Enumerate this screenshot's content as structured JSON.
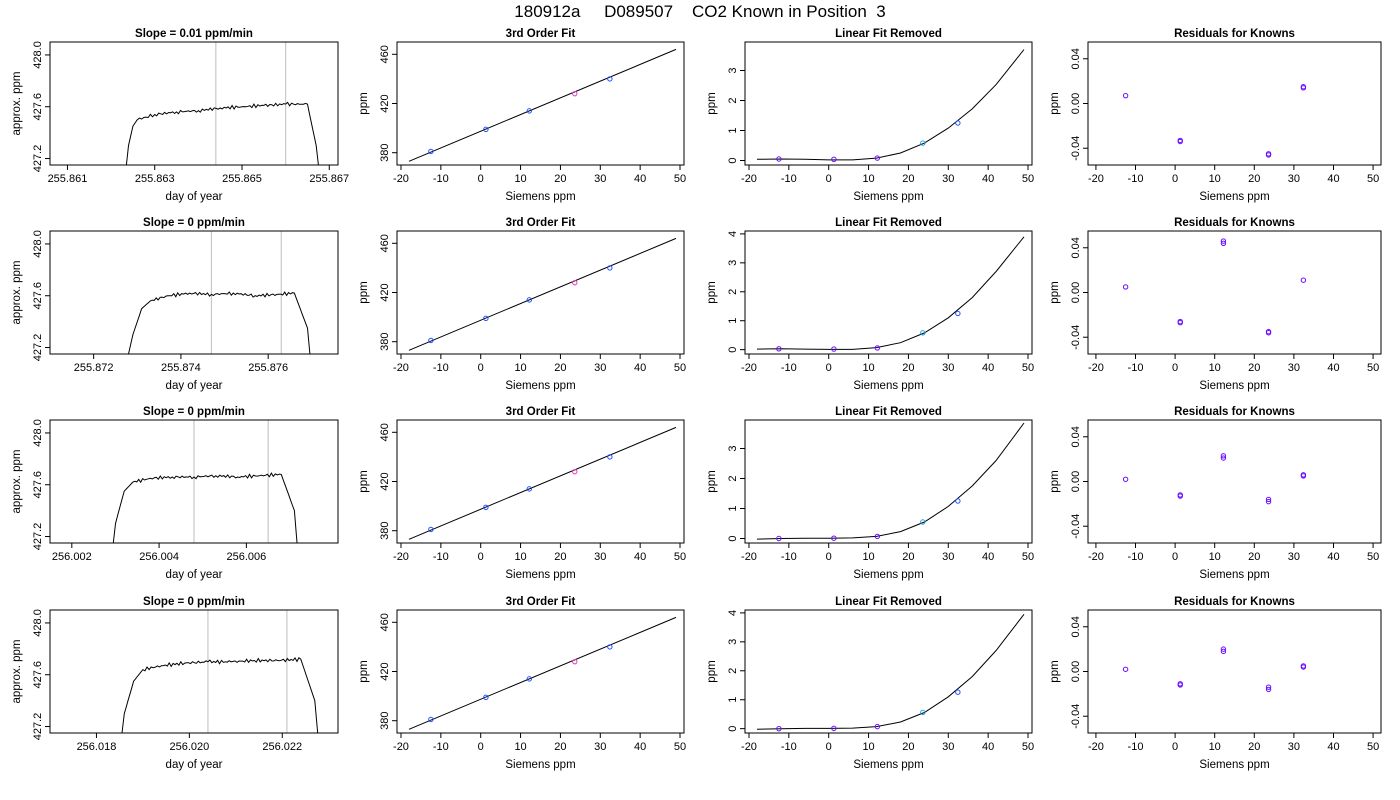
{
  "figure_title": "180912a     D089507    CO2 Known in Position  3",
  "colors": {
    "trace": "#000000",
    "vline": "#c8c8c8",
    "axis": "#000000",
    "point": "#6a0dff",
    "point_blue": "#1e50ff",
    "point_cyan": "#1ca0e8",
    "point_magenta": "#e040c0"
  },
  "chart_data": [
    {
      "type": "line",
      "panel": "trace",
      "row": 0,
      "title": "Slope =  0.01  ppm/min",
      "xlabel": "day of year",
      "ylabel": "approx. ppm",
      "xlim": [
        255.8606,
        255.8672
      ],
      "ylim": [
        427.15,
        428.1
      ],
      "xticks": [
        255.861,
        255.863,
        255.865,
        255.867
      ],
      "xticklabels": [
        "255.861",
        "255.863",
        "255.865",
        "255.867"
      ],
      "yticks": [
        427.2,
        427.6,
        428.0
      ],
      "yticklabels": [
        "427.2",
        "427.6",
        "428.0"
      ],
      "vlines": [
        255.8644,
        255.866
      ],
      "x": [
        255.8623,
        255.8624,
        255.8625,
        255.8626,
        255.8628,
        255.863,
        255.8635,
        255.864,
        255.8645,
        255.865,
        255.8655,
        255.866,
        255.8665,
        255.8667,
        255.8668
      ],
      "y": [
        427.0,
        427.3,
        427.45,
        427.5,
        427.52,
        427.54,
        427.56,
        427.57,
        427.59,
        427.6,
        427.61,
        427.62,
        427.62,
        427.3,
        427.0
      ]
    },
    {
      "type": "line",
      "panel": "fit",
      "row": 0,
      "title": "3rd Order Fit",
      "xlabel": "Siemens ppm",
      "ylabel": "ppm",
      "xlim": [
        -21,
        51
      ],
      "ylim": [
        370,
        470
      ],
      "xticks": [
        -20,
        -10,
        0,
        10,
        20,
        30,
        40,
        50
      ],
      "yticks": [
        380,
        420,
        460
      ],
      "line_x": [
        -18,
        49
      ],
      "line_y": [
        373,
        464
      ],
      "points": [
        [
          -12.5,
          381
        ],
        [
          1.3,
          399
        ],
        [
          12.2,
          414
        ],
        [
          23.6,
          428
        ],
        [
          32.4,
          440
        ]
      ]
    },
    {
      "type": "line",
      "panel": "linrem",
      "row": 0,
      "title": "Linear Fit Removed",
      "xlabel": "Siemens ppm",
      "ylabel": "ppm",
      "xlim": [
        -21,
        51
      ],
      "ylim": [
        -0.15,
        3.95
      ],
      "xticks": [
        -20,
        -10,
        0,
        10,
        20,
        30,
        40,
        50
      ],
      "yticks": [
        0,
        1,
        2,
        3
      ],
      "curve_x": [
        -18,
        -12,
        -6,
        0,
        6,
        12,
        18,
        24,
        30,
        36,
        42,
        49
      ],
      "curve_y": [
        0.04,
        0.05,
        0.04,
        0.02,
        0.02,
        0.08,
        0.25,
        0.58,
        1.08,
        1.72,
        2.53,
        3.7
      ],
      "points": [
        [
          -12.5,
          0.05
        ],
        [
          1.3,
          0.04
        ],
        [
          12.2,
          0.08
        ],
        [
          23.6,
          0.58
        ],
        [
          32.4,
          1.25
        ]
      ]
    },
    {
      "type": "scatter",
      "panel": "resid",
      "row": 0,
      "title": "Residuals for Knowns",
      "xlabel": "Siemens ppm",
      "ylabel": "ppm",
      "xlim": [
        -22,
        52
      ],
      "ylim": [
        -0.055,
        0.055
      ],
      "xticks": [
        -20,
        -10,
        0,
        10,
        20,
        30,
        40,
        50
      ],
      "yticks": [
        -0.04,
        0.0,
        0.04
      ],
      "yticklabels": [
        "-0.04",
        "0.00",
        "0.04"
      ],
      "points": [
        [
          -12.5,
          0.007
        ],
        [
          1.3,
          -0.033
        ],
        [
          1.3,
          -0.034
        ],
        [
          23.6,
          -0.045
        ],
        [
          23.6,
          -0.046
        ],
        [
          32.4,
          0.014
        ],
        [
          32.4,
          0.015
        ]
      ]
    },
    {
      "type": "line",
      "panel": "trace",
      "row": 1,
      "title": "Slope =  0  ppm/min",
      "xlabel": "day of year",
      "ylabel": "approx. ppm",
      "xlim": [
        255.871,
        255.8776
      ],
      "ylim": [
        427.15,
        428.1
      ],
      "xticks": [
        255.872,
        255.874,
        255.876
      ],
      "xticklabels": [
        "255.872",
        "255.874",
        "255.876"
      ],
      "yticks": [
        427.2,
        427.6,
        428.0
      ],
      "yticklabels": [
        "427.2",
        "427.6",
        "428.0"
      ],
      "vlines": [
        255.8747,
        255.8763
      ],
      "x": [
        255.8727,
        255.8729,
        255.8731,
        255.8733,
        255.8737,
        255.8742,
        255.8747,
        255.8752,
        255.8757,
        255.8762,
        255.8766,
        255.8769,
        255.877
      ],
      "y": [
        427.0,
        427.3,
        427.5,
        427.56,
        427.6,
        427.62,
        427.61,
        427.62,
        427.6,
        427.61,
        427.62,
        427.35,
        427.0
      ]
    },
    {
      "type": "line",
      "panel": "fit",
      "row": 1,
      "title": "3rd Order Fit",
      "xlabel": "Siemens ppm",
      "ylabel": "ppm",
      "xlim": [
        -21,
        51
      ],
      "ylim": [
        370,
        470
      ],
      "xticks": [
        -20,
        -10,
        0,
        10,
        20,
        30,
        40,
        50
      ],
      "yticks": [
        380,
        420,
        460
      ],
      "line_x": [
        -18,
        49
      ],
      "line_y": [
        373,
        464
      ],
      "points": [
        [
          -12.5,
          381
        ],
        [
          1.3,
          399
        ],
        [
          12.2,
          414
        ],
        [
          23.6,
          428
        ],
        [
          32.4,
          440
        ]
      ]
    },
    {
      "type": "line",
      "panel": "linrem",
      "row": 1,
      "title": "Linear Fit Removed",
      "xlabel": "Siemens ppm",
      "ylabel": "ppm",
      "xlim": [
        -21,
        51
      ],
      "ylim": [
        -0.15,
        4.1
      ],
      "xticks": [
        -20,
        -10,
        0,
        10,
        20,
        30,
        40,
        50
      ],
      "yticks": [
        0,
        1,
        2,
        3,
        4
      ],
      "curve_x": [
        -18,
        -12,
        -6,
        0,
        6,
        12,
        18,
        24,
        30,
        36,
        42,
        49
      ],
      "curve_y": [
        0.02,
        0.03,
        0.02,
        0.01,
        0.01,
        0.07,
        0.24,
        0.58,
        1.1,
        1.8,
        2.7,
        3.9
      ],
      "points": [
        [
          -12.5,
          0.03
        ],
        [
          1.3,
          0.02
        ],
        [
          12.2,
          0.06
        ],
        [
          23.6,
          0.58
        ],
        [
          32.4,
          1.25
        ]
      ]
    },
    {
      "type": "scatter",
      "panel": "resid",
      "row": 1,
      "title": "Residuals for Knowns",
      "xlabel": "Siemens ppm",
      "ylabel": "ppm",
      "xlim": [
        -22,
        52
      ],
      "ylim": [
        -0.055,
        0.055
      ],
      "xticks": [
        -20,
        -10,
        0,
        10,
        20,
        30,
        40,
        50
      ],
      "yticks": [
        -0.04,
        0.0,
        0.04
      ],
      "yticklabels": [
        "-0.04",
        "0.00",
        "0.04"
      ],
      "points": [
        [
          -12.5,
          0.005
        ],
        [
          1.3,
          -0.026
        ],
        [
          1.3,
          -0.027
        ],
        [
          12.2,
          0.044
        ],
        [
          12.2,
          0.046
        ],
        [
          23.6,
          -0.035
        ],
        [
          23.6,
          -0.036
        ],
        [
          32.4,
          0.011
        ]
      ]
    },
    {
      "type": "line",
      "panel": "trace",
      "row": 2,
      "title": "Slope =  0  ppm/min",
      "xlabel": "day of year",
      "ylabel": "approx. ppm",
      "xlim": [
        256.0015,
        256.0081
      ],
      "ylim": [
        427.15,
        428.1
      ],
      "xticks": [
        256.002,
        256.004,
        256.006
      ],
      "xticklabels": [
        "256.002",
        "256.004",
        "256.006"
      ],
      "yticks": [
        427.2,
        427.6,
        428.0
      ],
      "yticklabels": [
        "427.2",
        "427.6",
        "428.0"
      ],
      "vlines": [
        256.0048,
        256.0065
      ],
      "x": [
        256.0029,
        256.003,
        256.0032,
        256.0034,
        256.0038,
        256.0043,
        256.0048,
        256.0053,
        256.0058,
        256.0063,
        256.0068,
        256.0071,
        256.0072
      ],
      "y": [
        427.0,
        427.3,
        427.55,
        427.62,
        427.65,
        427.66,
        427.66,
        427.67,
        427.66,
        427.67,
        427.68,
        427.4,
        427.0
      ]
    },
    {
      "type": "line",
      "panel": "fit",
      "row": 2,
      "title": "3rd Order Fit",
      "xlabel": "Siemens ppm",
      "ylabel": "ppm",
      "xlim": [
        -21,
        51
      ],
      "ylim": [
        370,
        470
      ],
      "xticks": [
        -20,
        -10,
        0,
        10,
        20,
        30,
        40,
        50
      ],
      "yticks": [
        380,
        420,
        460
      ],
      "line_x": [
        -18,
        49
      ],
      "line_y": [
        373,
        464
      ],
      "points": [
        [
          -12.5,
          381
        ],
        [
          1.3,
          399
        ],
        [
          12.2,
          414
        ],
        [
          23.6,
          428
        ],
        [
          32.4,
          440
        ]
      ]
    },
    {
      "type": "line",
      "panel": "linrem",
      "row": 2,
      "title": "Linear Fit Removed",
      "xlabel": "Siemens ppm",
      "ylabel": "ppm",
      "xlim": [
        -21,
        51
      ],
      "ylim": [
        -0.15,
        3.95
      ],
      "xticks": [
        -20,
        -10,
        0,
        10,
        20,
        30,
        40,
        50
      ],
      "yticks": [
        0,
        1,
        2,
        3
      ],
      "curve_x": [
        -18,
        -12,
        -6,
        0,
        6,
        12,
        18,
        24,
        30,
        36,
        42,
        49
      ],
      "curve_y": [
        -0.02,
        0.0,
        0.01,
        0.01,
        0.02,
        0.07,
        0.23,
        0.55,
        1.07,
        1.75,
        2.6,
        3.85
      ],
      "points": [
        [
          -12.5,
          0.0
        ],
        [
          1.3,
          0.01
        ],
        [
          12.2,
          0.07
        ],
        [
          23.6,
          0.55
        ],
        [
          32.4,
          1.25
        ]
      ]
    },
    {
      "type": "scatter",
      "panel": "resid",
      "row": 2,
      "title": "Residuals for Knowns",
      "xlabel": "Siemens ppm",
      "ylabel": "ppm",
      "xlim": [
        -22,
        52
      ],
      "ylim": [
        -0.055,
        0.055
      ],
      "xticks": [
        -20,
        -10,
        0,
        10,
        20,
        30,
        40,
        50
      ],
      "yticks": [
        -0.04,
        0.0,
        0.04
      ],
      "yticklabels": [
        "-0.04",
        "0.00",
        "0.04"
      ],
      "points": [
        [
          -12.5,
          0.002
        ],
        [
          1.3,
          -0.012
        ],
        [
          1.3,
          -0.013
        ],
        [
          12.2,
          0.021
        ],
        [
          12.2,
          0.023
        ],
        [
          23.6,
          -0.016
        ],
        [
          23.6,
          -0.018
        ],
        [
          32.4,
          0.005
        ],
        [
          32.4,
          0.006
        ]
      ]
    },
    {
      "type": "line",
      "panel": "trace",
      "row": 3,
      "title": "Slope =  0  ppm/min",
      "xlabel": "day of year",
      "ylabel": "approx. ppm",
      "xlim": [
        256.017,
        256.0232
      ],
      "ylim": [
        427.15,
        428.1
      ],
      "xticks": [
        256.018,
        256.02,
        256.022
      ],
      "xticklabels": [
        "256.018",
        "256.020",
        "256.022"
      ],
      "yticks": [
        427.2,
        427.6,
        428.0
      ],
      "yticklabels": [
        "427.2",
        "427.6",
        "428.0"
      ],
      "vlines": [
        256.0204,
        256.0221
      ],
      "x": [
        256.0185,
        256.0186,
        256.0188,
        256.019,
        256.0194,
        256.0199,
        256.0204,
        256.0209,
        256.0214,
        256.0219,
        256.0224,
        256.0227,
        256.0228
      ],
      "y": [
        427.0,
        427.3,
        427.55,
        427.64,
        427.67,
        427.69,
        427.7,
        427.7,
        427.71,
        427.71,
        427.72,
        427.4,
        427.0
      ]
    },
    {
      "type": "line",
      "panel": "fit",
      "row": 3,
      "title": "3rd Order Fit",
      "xlabel": "Siemens ppm",
      "ylabel": "ppm",
      "xlim": [
        -21,
        51
      ],
      "ylim": [
        370,
        470
      ],
      "xticks": [
        -20,
        -10,
        0,
        10,
        20,
        30,
        40,
        50
      ],
      "yticks": [
        380,
        420,
        460
      ],
      "line_x": [
        -18,
        49
      ],
      "line_y": [
        373,
        464
      ],
      "points": [
        [
          -12.5,
          381
        ],
        [
          1.3,
          399
        ],
        [
          12.2,
          414
        ],
        [
          23.6,
          428
        ],
        [
          32.4,
          440
        ]
      ]
    },
    {
      "type": "line",
      "panel": "linrem",
      "row": 3,
      "title": "Linear Fit Removed",
      "xlabel": "Siemens ppm",
      "ylabel": "ppm",
      "xlim": [
        -21,
        51
      ],
      "ylim": [
        -0.15,
        4.1
      ],
      "xticks": [
        -20,
        -10,
        0,
        10,
        20,
        30,
        40,
        50
      ],
      "yticks": [
        0,
        1,
        2,
        3,
        4
      ],
      "curve_x": [
        -18,
        -12,
        -6,
        0,
        6,
        12,
        18,
        24,
        30,
        36,
        42,
        49
      ],
      "curve_y": [
        -0.02,
        0.0,
        0.01,
        0.01,
        0.02,
        0.07,
        0.23,
        0.56,
        1.1,
        1.8,
        2.7,
        3.95
      ],
      "points": [
        [
          -12.5,
          0.0
        ],
        [
          1.3,
          0.01
        ],
        [
          12.2,
          0.07
        ],
        [
          23.6,
          0.56
        ],
        [
          32.4,
          1.26
        ]
      ]
    },
    {
      "type": "scatter",
      "panel": "resid",
      "row": 3,
      "title": "Residuals for Knowns",
      "xlabel": "Siemens ppm",
      "ylabel": "ppm",
      "xlim": [
        -22,
        52
      ],
      "ylim": [
        -0.055,
        0.055
      ],
      "xticks": [
        -20,
        -10,
        0,
        10,
        20,
        30,
        40,
        50
      ],
      "yticks": [
        -0.04,
        0.0,
        0.04
      ],
      "yticklabels": [
        "-0.04",
        "0.00",
        "0.04"
      ],
      "points": [
        [
          -12.5,
          0.002
        ],
        [
          1.3,
          -0.011
        ],
        [
          1.3,
          -0.012
        ],
        [
          12.2,
          0.018
        ],
        [
          12.2,
          0.02
        ],
        [
          23.6,
          -0.014
        ],
        [
          23.6,
          -0.016
        ],
        [
          32.4,
          0.004
        ],
        [
          32.4,
          0.005
        ]
      ]
    }
  ]
}
